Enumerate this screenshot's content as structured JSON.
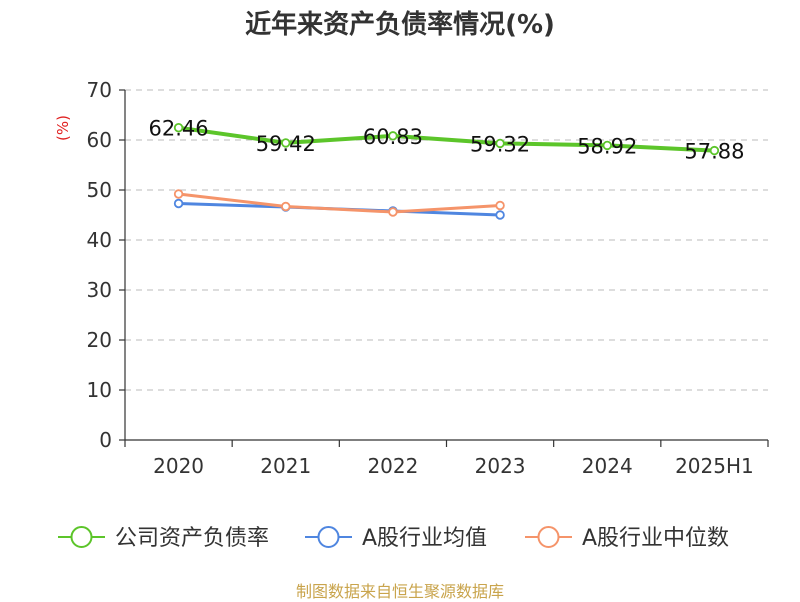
{
  "title": "近年来资产负债率情况(%)",
  "source_note": "制图数据来自恒生聚源数据库",
  "chart_data": {
    "type": "line",
    "title": "近年来资产负债率情况(%)",
    "ylabel": "(%)",
    "xlabel": "",
    "categories": [
      "2020",
      "2021",
      "2022",
      "2023",
      "2024",
      "2025H1"
    ],
    "ylim": [
      0,
      70
    ],
    "yticks": [
      0,
      10,
      20,
      30,
      40,
      50,
      60,
      70
    ],
    "grid": true,
    "legend_position": "bottom",
    "series": [
      {
        "name": "公司资产负债率",
        "color": "#5cc52a",
        "values": [
          62.46,
          59.42,
          60.83,
          59.32,
          58.92,
          57.88
        ],
        "labels": [
          "62.46",
          "59.42",
          "60.83",
          "59.32",
          "58.92",
          "57.88"
        ]
      },
      {
        "name": "A股行业均值",
        "color": "#4f86e0",
        "values": [
          47.3,
          46.6,
          45.8,
          45.0,
          null,
          null
        ]
      },
      {
        "name": "A股行业中位数",
        "color": "#f5946a",
        "values": [
          49.2,
          46.7,
          45.6,
          46.9,
          null,
          null
        ]
      }
    ]
  }
}
